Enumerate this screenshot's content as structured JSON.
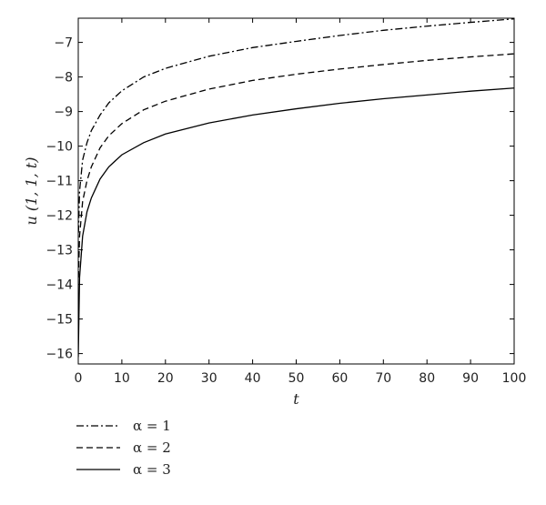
{
  "chart_data": {
    "type": "line",
    "title": "",
    "xlabel": "t",
    "ylabel": "u (1, 1, t)",
    "xlim": [
      0,
      100
    ],
    "ylim": [
      -16.3,
      -6.3
    ],
    "xticks": [
      0,
      10,
      20,
      30,
      40,
      50,
      60,
      70,
      80,
      90,
      100
    ],
    "yticks": [
      -16,
      -15,
      -14,
      -13,
      -12,
      -11,
      -10,
      -9,
      -8,
      -7
    ],
    "grid": false,
    "legend_position": "below",
    "series": [
      {
        "name": "α = 1",
        "style": "dashdot",
        "color": "#000000",
        "x": [
          0.05,
          0.3,
          1,
          2,
          3,
          5,
          7,
          10,
          15,
          20,
          30,
          40,
          50,
          60,
          70,
          80,
          90,
          100
        ],
        "y": [
          -12.5,
          -11.3,
          -10.4,
          -9.9,
          -9.55,
          -9.1,
          -8.75,
          -8.4,
          -8.0,
          -7.75,
          -7.4,
          -7.15,
          -6.97,
          -6.8,
          -6.65,
          -6.53,
          -6.42,
          -6.32
        ]
      },
      {
        "name": "α = 2",
        "style": "dashed",
        "color": "#000000",
        "x": [
          0.05,
          0.3,
          1,
          2,
          3,
          5,
          7,
          10,
          15,
          20,
          30,
          40,
          50,
          60,
          70,
          80,
          90,
          100
        ],
        "y": [
          -13.8,
          -12.6,
          -11.6,
          -11.0,
          -10.6,
          -10.05,
          -9.7,
          -9.35,
          -8.95,
          -8.7,
          -8.35,
          -8.1,
          -7.92,
          -7.77,
          -7.64,
          -7.52,
          -7.42,
          -7.33
        ]
      },
      {
        "name": "α = 3",
        "style": "solid",
        "color": "#000000",
        "x": [
          0,
          0.3,
          1,
          2,
          3,
          5,
          7,
          10,
          15,
          20,
          30,
          40,
          50,
          60,
          70,
          80,
          90,
          100
        ],
        "y": [
          -16.1,
          -13.8,
          -12.6,
          -11.9,
          -11.5,
          -10.95,
          -10.6,
          -10.25,
          -9.9,
          -9.65,
          -9.33,
          -9.1,
          -8.92,
          -8.76,
          -8.63,
          -8.52,
          -8.41,
          -8.32
        ]
      }
    ]
  }
}
